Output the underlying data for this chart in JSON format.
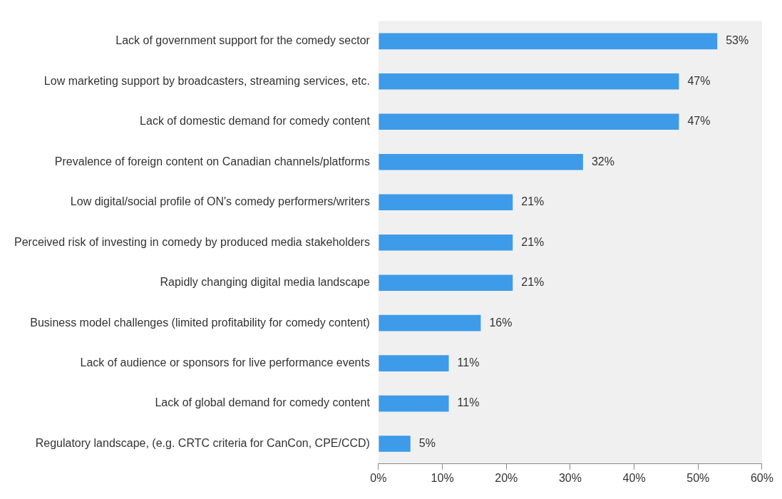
{
  "chart_data": {
    "type": "bar",
    "orientation": "horizontal",
    "categories": [
      "Lack of government support for the comedy sector",
      "Low marketing support by broadcasters, streaming services, etc.",
      "Lack of domestic demand for comedy content",
      "Prevalence of foreign content on Canadian channels/platforms",
      "Low digital/social profile of ON's comedy performers/writers",
      "Perceived risk of investing in comedy by produced media stakeholders",
      "Rapidly changing digital media landscape",
      "Business model challenges (limited profitability for comedy content)",
      "Lack of audience or sponsors for live performance events",
      "Lack of global demand for comedy content",
      "Regulatory landscape, (e.g. CRTC criteria for CanCon, CPE/CCD)"
    ],
    "values": [
      53,
      47,
      47,
      32,
      21,
      21,
      21,
      16,
      11,
      11,
      5
    ],
    "value_labels": [
      "53%",
      "47%",
      "47%",
      "32%",
      "21%",
      "21%",
      "21%",
      "16%",
      "11%",
      "11%",
      "5%"
    ],
    "color": "#3d9be9",
    "xlim": [
      0,
      60
    ],
    "xticks": [
      {
        "value": 0,
        "label": "0%"
      },
      {
        "value": 10,
        "label": "10%"
      },
      {
        "value": 20,
        "label": "20%"
      },
      {
        "value": 30,
        "label": "30%"
      },
      {
        "value": 40,
        "label": "40%"
      },
      {
        "value": 50,
        "label": "50%"
      },
      {
        "value": 60,
        "label": "60%"
      }
    ],
    "grid": false,
    "legend": false
  }
}
